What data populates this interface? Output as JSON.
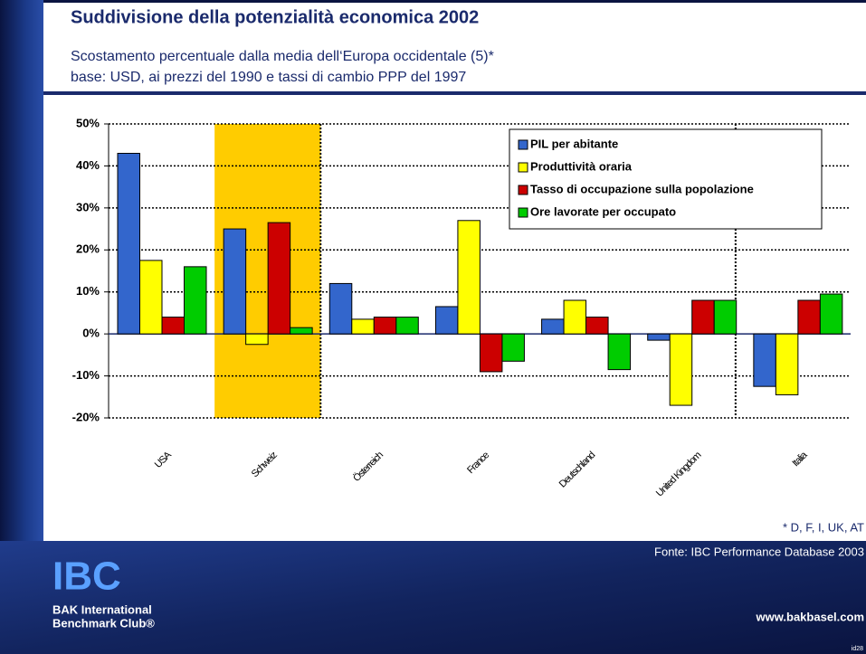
{
  "chart_data": {
    "type": "bar",
    "title": "Suddivisione della potenzialità economica 2002",
    "subtitle": "Scostamento percentuale dalla media dell‘Europa occidentale (5)*",
    "subtitle2": "base: USD, ai prezzi del 1990 e tassi di cambio PPP del 1997",
    "categories": [
      "USA",
      "Schweiz",
      "Österreich",
      "France",
      "Deutschland",
      "United Kingdom",
      "Italia"
    ],
    "series": [
      {
        "name": "PIL per abitante",
        "color": "#3366cc",
        "values": [
          43,
          25,
          12,
          6.5,
          3.5,
          -1.5,
          -12.5
        ]
      },
      {
        "name": "Produttività oraria",
        "color": "#ffff00",
        "values": [
          17.5,
          -2.5,
          3.5,
          27,
          8,
          -17,
          -14.5
        ]
      },
      {
        "name": "Tasso di occupazione sulla popolazione",
        "color": "#cc0000",
        "values": [
          4,
          26.5,
          4,
          -9,
          4,
          8,
          8
        ]
      },
      {
        "name": "Ore lavorate per occupato",
        "color": "#00cc00",
        "values": [
          16,
          1.5,
          4,
          -6.5,
          -8.5,
          8,
          9.5
        ]
      }
    ],
    "ylim": [
      -20,
      50
    ],
    "yticks": [
      {
        "value": -20,
        "label": "-20%"
      },
      {
        "value": -10,
        "label": "-10%"
      },
      {
        "value": 0,
        "label": "0%"
      },
      {
        "value": 10,
        "label": "10%"
      },
      {
        "value": 20,
        "label": "20%"
      },
      {
        "value": 30,
        "label": "30%"
      },
      {
        "value": 40,
        "label": "40%"
      },
      {
        "value": 50,
        "label": "50%"
      }
    ],
    "grid": true,
    "highlight": "Schweiz",
    "highlight_color": "#ffcc00",
    "legend": "top-right",
    "note": "* D, F, I, UK, AT",
    "source": "Fonte: IBC Performance Database 2003",
    "logo": "IBC",
    "org_line1": "BAK International",
    "org_line2": "Benchmark Club®",
    "website": "www.bakbasel.com",
    "slide_id": "id28"
  }
}
